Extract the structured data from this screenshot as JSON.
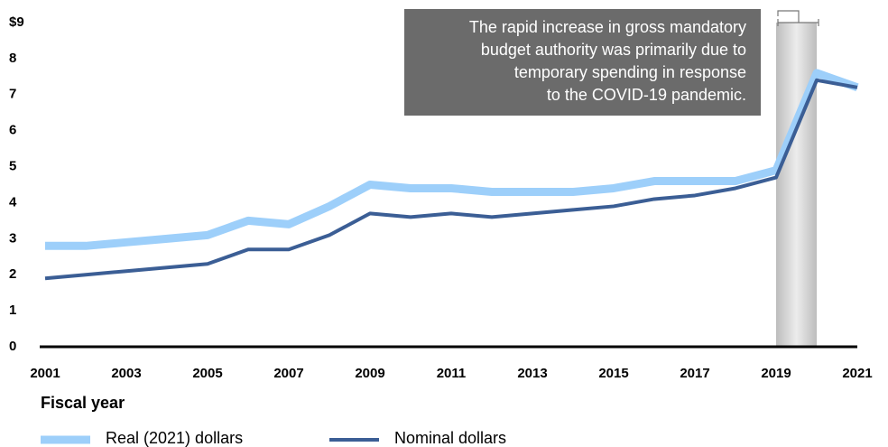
{
  "chart_data": {
    "type": "line",
    "x": [
      2001,
      2002,
      2003,
      2004,
      2005,
      2006,
      2007,
      2008,
      2009,
      2010,
      2011,
      2012,
      2013,
      2014,
      2015,
      2016,
      2017,
      2018,
      2019,
      2020,
      2021
    ],
    "series": [
      {
        "name": "Real (2021) dollars",
        "color": "#9dcffa",
        "values": [
          2.8,
          2.8,
          2.9,
          3.0,
          3.1,
          3.5,
          3.4,
          3.9,
          4.5,
          4.4,
          4.4,
          4.3,
          4.3,
          4.3,
          4.4,
          4.6,
          4.6,
          4.6,
          4.9,
          7.6,
          7.2
        ]
      },
      {
        "name": "Nominal dollars",
        "color": "#3b5e95",
        "values": [
          1.9,
          2.0,
          2.1,
          2.2,
          2.3,
          2.7,
          2.7,
          3.1,
          3.7,
          3.6,
          3.7,
          3.6,
          3.7,
          3.8,
          3.9,
          4.1,
          4.2,
          4.4,
          4.7,
          7.4,
          7.2
        ]
      }
    ],
    "xlim": [
      2001,
      2021
    ],
    "xticks": [
      2001,
      2003,
      2005,
      2007,
      2009,
      2011,
      2013,
      2015,
      2017,
      2019,
      2021
    ],
    "ylim": [
      0,
      9
    ],
    "yticks": [
      0,
      1,
      2,
      3,
      4,
      5,
      6,
      7,
      8,
      {
        "value": 9,
        "label": "$9"
      }
    ],
    "xlabel": "Fiscal year",
    "highlight_x": [
      2019,
      2020
    ],
    "annotation": [
      "The rapid increase in gross mandatory",
      "budget authority was primarily due to",
      "temporary spending in response",
      "to the COVID-19 pandemic."
    ]
  }
}
